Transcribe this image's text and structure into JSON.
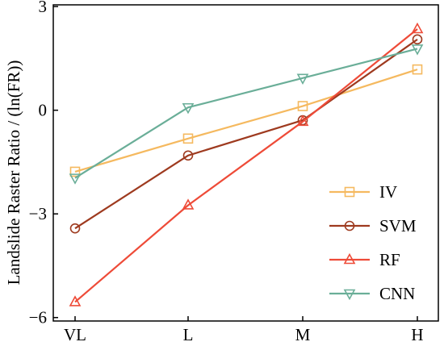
{
  "chart_data": {
    "type": "line",
    "title": "",
    "xlabel": "",
    "ylabel": "Landslide Raster Ratio / (ln(FR))",
    "categories": [
      "VL",
      "L",
      "M",
      "H"
    ],
    "yticks": [
      -6,
      -3,
      0,
      3
    ],
    "ytick_labels": [
      "−6",
      "−3",
      "0",
      "3"
    ],
    "ylim": [
      -6.1,
      3.05
    ],
    "grid": false,
    "legend_position": "bottom-right",
    "series": [
      {
        "name": "IV",
        "color": "#F5B95F",
        "marker": "square",
        "values": [
          -1.78,
          -0.82,
          0.12,
          1.18
        ]
      },
      {
        "name": "SVM",
        "color": "#9E3A1F",
        "marker": "circle",
        "values": [
          -3.42,
          -1.31,
          -0.29,
          2.05
        ]
      },
      {
        "name": "RF",
        "color": "#EE4B38",
        "marker": "triangle-up",
        "values": [
          -5.55,
          -2.75,
          -0.33,
          2.35
        ]
      },
      {
        "name": "CNN",
        "color": "#6AAE98",
        "marker": "triangle-down",
        "values": [
          -1.96,
          0.08,
          0.93,
          1.78
        ]
      }
    ]
  }
}
